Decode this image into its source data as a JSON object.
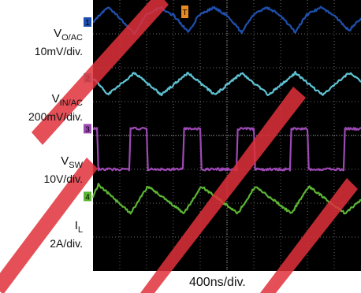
{
  "chart_data": {
    "type": "line",
    "timebase": "400ns/div.",
    "grid": true,
    "divisions": {
      "x": 10,
      "y": 8
    },
    "trigger_marker": "T",
    "colors": {
      "background": "#000000",
      "grid": "#6a6a6a",
      "watermark": "#e0313b"
    },
    "series": [
      {
        "channel": "1",
        "label_main": "V",
        "label_sub": "O/AC",
        "scale": "10mV/div.",
        "color": "#1f4fae",
        "x": [
          0,
          0.55,
          0.9,
          1.55,
          1.95,
          2.5,
          3.0,
          3.55,
          3.95,
          4.5,
          5.0,
          5.55,
          5.95,
          6.5,
          7.0,
          7.55,
          7.95,
          8.5,
          9.0,
          9.55,
          10
        ],
        "y": [
          3.35,
          3.78,
          3.55,
          3.0,
          3.55,
          3.78,
          3.55,
          3.05,
          3.55,
          3.78,
          3.55,
          3.05,
          3.55,
          3.78,
          3.55,
          3.05,
          3.55,
          3.78,
          3.55,
          3.1,
          3.45
        ]
      },
      {
        "channel": "2",
        "label_main": "V",
        "label_sub": "IN/AC",
        "scale": "200mV/div.",
        "color": "#5fc3d3",
        "x": [
          0,
          0.55,
          1.55,
          2.55,
          3.55,
          4.55,
          5.55,
          6.55,
          7.55,
          8.55,
          9.55,
          10
        ],
        "y": [
          1.7,
          1.2,
          1.85,
          1.2,
          1.85,
          1.2,
          1.85,
          1.2,
          1.85,
          1.2,
          1.85,
          1.6
        ]
      },
      {
        "channel": "3",
        "label_main": "V",
        "label_sub": "SW",
        "scale": "10V/div.",
        "color": "#9c49b3",
        "x": [
          0,
          0.15,
          0.2,
          1.35,
          1.4,
          2.0,
          2.05,
          3.35,
          3.4,
          4.0,
          4.05,
          5.35,
          5.4,
          6.0,
          6.05,
          7.35,
          7.4,
          8.0,
          8.05,
          9.35,
          9.4,
          10
        ],
        "y": [
          0.2,
          0.2,
          -1.0,
          -1.0,
          0.2,
          0.2,
          -1.0,
          -1.0,
          0.2,
          0.2,
          -1.0,
          -1.0,
          0.2,
          0.2,
          -1.0,
          -1.0,
          0.2,
          0.2,
          -1.0,
          -1.0,
          0.2,
          0.2
        ]
      },
      {
        "channel": "4",
        "label_main": "I",
        "label_sub": "L",
        "scale": "2A/div.",
        "color": "#5cb534",
        "x": [
          0,
          0.2,
          1.4,
          2.05,
          3.4,
          4.05,
          5.4,
          6.05,
          7.4,
          8.05,
          9.4,
          10
        ],
        "y": [
          -1.8,
          -1.45,
          -2.3,
          -1.5,
          -2.3,
          -1.5,
          -2.3,
          -1.5,
          -2.3,
          -1.5,
          -2.3,
          -1.9
        ]
      }
    ]
  }
}
